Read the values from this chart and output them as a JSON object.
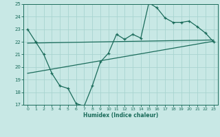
{
  "xlabel": "Humidex (Indice chaleur)",
  "bg_color": "#c8e8e5",
  "line_color": "#1a6b5a",
  "grid_color": "#a8d4d0",
  "xlim": [
    -0.5,
    23.5
  ],
  "ylim": [
    17,
    25
  ],
  "xticks": [
    0,
    1,
    2,
    3,
    4,
    5,
    6,
    7,
    8,
    9,
    10,
    11,
    12,
    13,
    14,
    15,
    16,
    17,
    18,
    19,
    20,
    21,
    22,
    23
  ],
  "yticks": [
    17,
    18,
    19,
    20,
    21,
    22,
    23,
    24,
    25
  ],
  "main_x": [
    0,
    1,
    2,
    3,
    4,
    5,
    6,
    7,
    8,
    9,
    10,
    11,
    12,
    13,
    14,
    15,
    16,
    17,
    18,
    19,
    20,
    21,
    22,
    23
  ],
  "main_y": [
    23,
    22,
    21,
    19.5,
    18.5,
    18.3,
    17.1,
    16.9,
    18.5,
    20.4,
    21.1,
    22.6,
    22.2,
    22.6,
    22.3,
    25.1,
    24.7,
    23.9,
    23.55,
    23.55,
    23.65,
    23.2,
    22.7,
    22.0
  ],
  "line2_x": [
    0,
    23
  ],
  "line2_y": [
    21.9,
    22.15
  ],
  "line3_x": [
    0,
    23
  ],
  "line3_y": [
    19.5,
    22.05
  ]
}
